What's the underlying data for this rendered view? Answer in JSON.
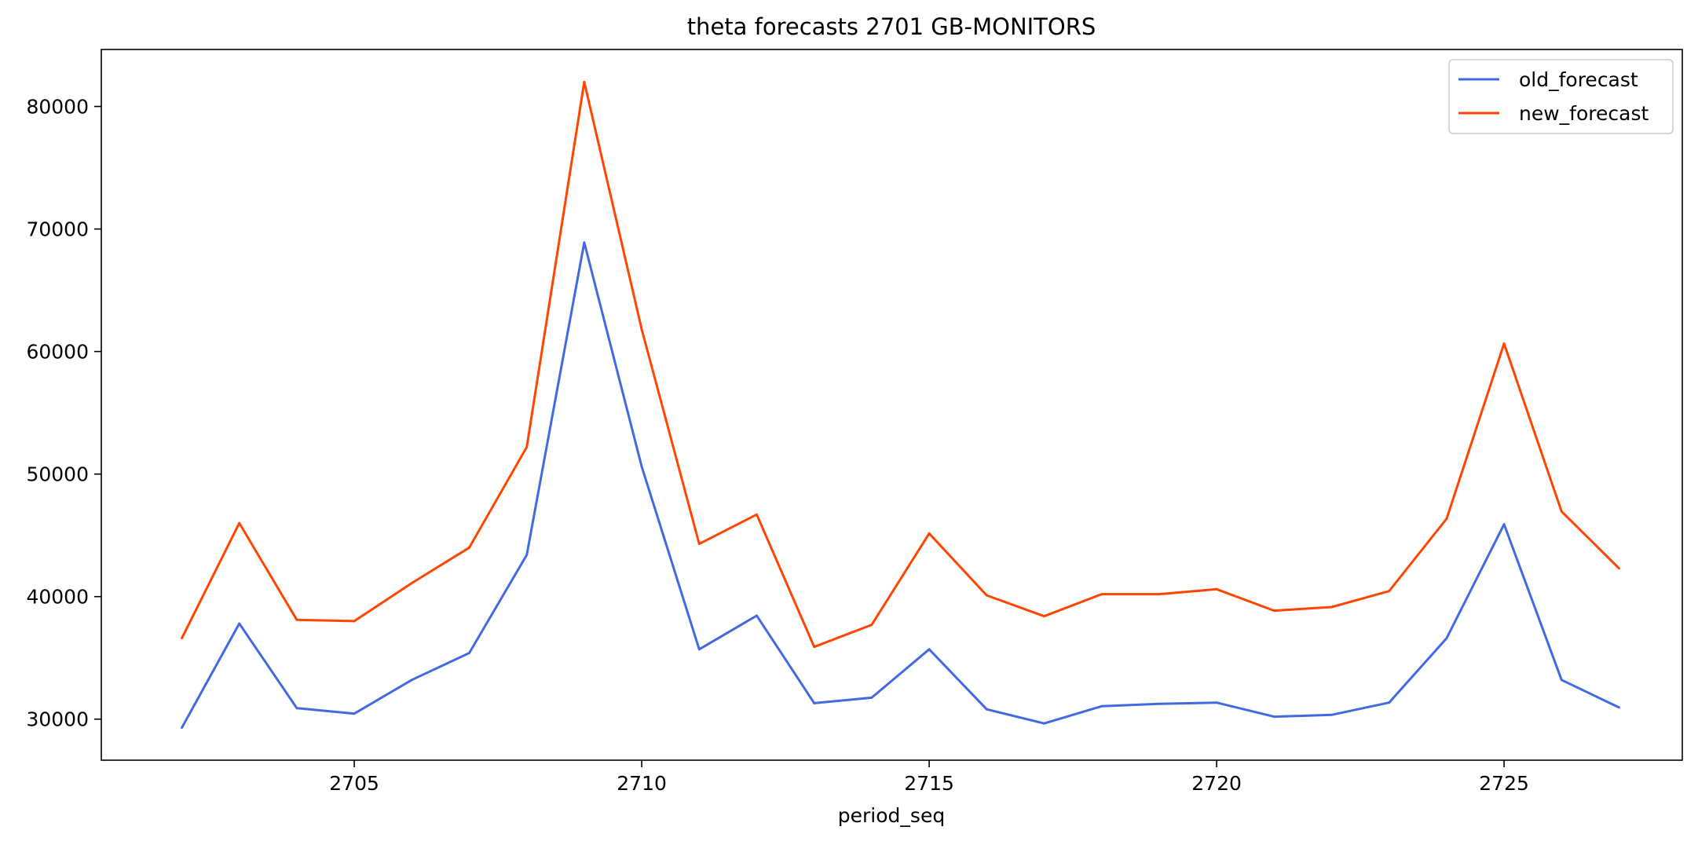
{
  "chart_data": {
    "type": "line",
    "title": "theta forecasts 2701 GB-MONITORS",
    "xlabel": "period_seq",
    "ylabel": "",
    "x": [
      2702,
      2703,
      2704,
      2705,
      2706,
      2707,
      2708,
      2709,
      2710,
      2711,
      2712,
      2713,
      2714,
      2715,
      2716,
      2717,
      2718,
      2719,
      2720,
      2721,
      2722,
      2723,
      2724,
      2725,
      2726,
      2727
    ],
    "xlim": [
      2700.6,
      2728.1
    ],
    "ylim": [
      26650,
      84650
    ],
    "xticks": [
      2705,
      2710,
      2715,
      2720,
      2725
    ],
    "yticks": [
      30000,
      40000,
      50000,
      60000,
      70000,
      80000
    ],
    "legend_position": "top-right",
    "grid": false,
    "series": [
      {
        "name": "old_forecast",
        "color": "#4169e1",
        "values": [
          29300,
          37800,
          30900,
          30450,
          33200,
          35400,
          43400,
          68900,
          50600,
          35700,
          38450,
          31300,
          31750,
          35700,
          30800,
          29650,
          31050,
          31250,
          31350,
          30200,
          30350,
          31350,
          36600,
          45900,
          33200,
          30950
        ]
      },
      {
        "name": "new_forecast",
        "color": "#ff4500",
        "values": [
          36600,
          46000,
          38100,
          38000,
          41100,
          44000,
          52200,
          82000,
          61800,
          44300,
          46700,
          35900,
          37700,
          45150,
          40100,
          38400,
          40200,
          40200,
          40600,
          38850,
          39150,
          40450,
          46350,
          60650,
          46950,
          42300
        ]
      }
    ]
  }
}
